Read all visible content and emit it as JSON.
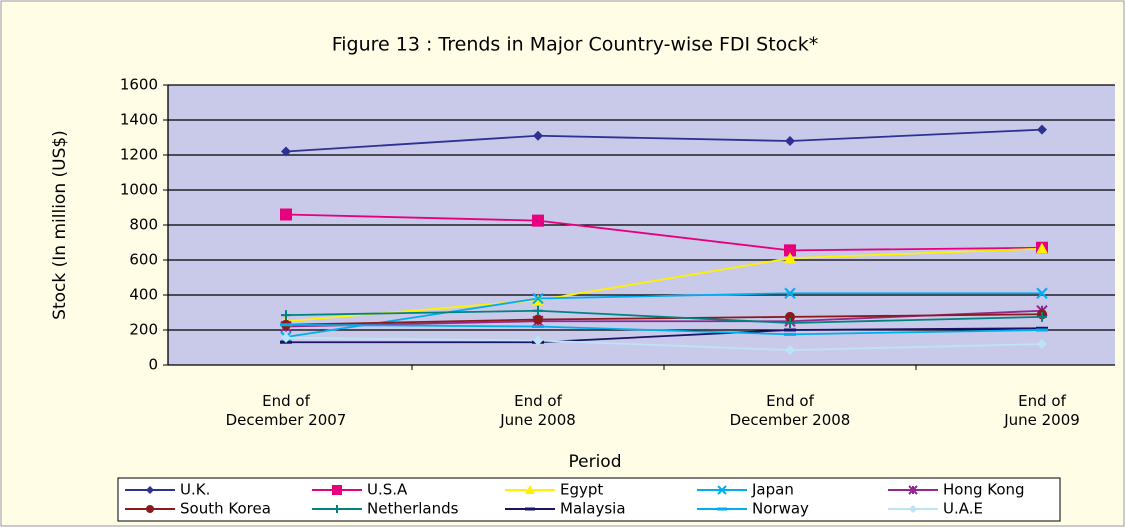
{
  "chart_data": {
    "type": "line",
    "title": "Figure 13 : Trends in Major Country-wise FDI Stock*",
    "x_label": "Period",
    "y_label": "Stock (In million (US$)",
    "categories": [
      "End of\nDecember 2007",
      "End of\nJune 2008",
      "End of\nDecember 2008",
      "End of\nJune 2009"
    ],
    "ylim": [
      0,
      1600
    ],
    "yticks": [
      0,
      200,
      400,
      600,
      800,
      1000,
      1200,
      1400,
      1600
    ],
    "grid": true,
    "series": [
      {
        "name": "U.K.",
        "color": "#2e3192",
        "marker": "diamond",
        "values": [
          1220,
          1310,
          1280,
          1345
        ]
      },
      {
        "name": "U.S.A",
        "color": "#e6007e",
        "marker": "square",
        "values": [
          860,
          825,
          655,
          670
        ]
      },
      {
        "name": "Egypt",
        "color": "#fff200",
        "marker": "triangle",
        "values": [
          250,
          370,
          610,
          665
        ]
      },
      {
        "name": "Japan",
        "color": "#00aeef",
        "marker": "x",
        "values": [
          160,
          380,
          410,
          410
        ]
      },
      {
        "name": "Hong Kong",
        "color": "#92278f",
        "marker": "star",
        "values": [
          220,
          250,
          250,
          310
        ]
      },
      {
        "name": "South Korea",
        "color": "#8b1a1a",
        "marker": "circle",
        "values": [
          230,
          260,
          275,
          290
        ]
      },
      {
        "name": "Netherlands",
        "color": "#00827f",
        "marker": "plus",
        "values": [
          285,
          310,
          240,
          275
        ]
      },
      {
        "name": "Malaysia",
        "color": "#1b1464",
        "marker": "dash",
        "values": [
          130,
          130,
          200,
          210
        ]
      },
      {
        "name": "Norway",
        "color": "#00aeef",
        "marker": "dash",
        "values": [
          230,
          220,
          175,
          200
        ]
      },
      {
        "name": "U.A.E",
        "color": "#bde3f7",
        "marker": "diamond",
        "values": [
          155,
          140,
          85,
          120
        ]
      }
    ]
  }
}
